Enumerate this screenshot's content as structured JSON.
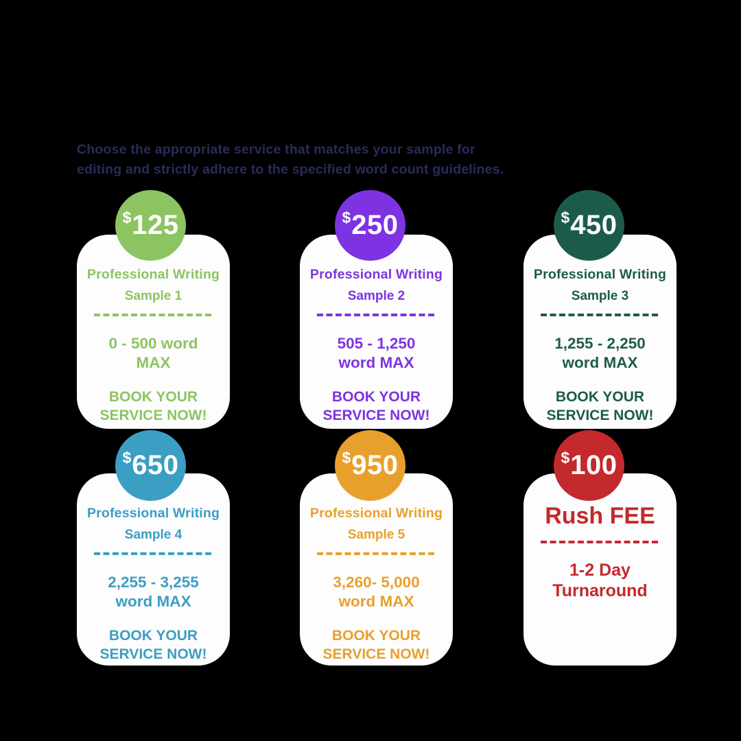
{
  "background_color": "#000000",
  "intro": {
    "line1": "Choose the appropriate service that matches your sample for",
    "line2": "editing and strictly adhere to the specified word count guidelines.",
    "text_color": "#272c5a"
  },
  "cards": [
    {
      "currency": "$",
      "price": "125",
      "title": "Professional Writing",
      "sample": "Sample 1",
      "range_line1": "0 - 500 word",
      "range_line2": "MAX",
      "cta_line1": "BOOK YOUR",
      "cta_line2": "SERVICE NOW!",
      "theme_color": "#8cc462"
    },
    {
      "currency": "$",
      "price": "250",
      "title": "Professional Writing",
      "sample": "Sample 2",
      "range_line1": "505 - 1,250",
      "range_line2": "word MAX",
      "cta_line1": "BOOK YOUR",
      "cta_line2": "SERVICE NOW!",
      "theme_color": "#7e33e2"
    },
    {
      "currency": "$",
      "price": "450",
      "title": "Professional Writing",
      "sample": "Sample 3",
      "range_line1": "1,255 - 2,250",
      "range_line2": "word MAX",
      "cta_line1": "BOOK YOUR",
      "cta_line2": "SERVICE NOW!",
      "theme_color": "#1c5b4c"
    },
    {
      "currency": "$",
      "price": "650",
      "title": "Professional Writing",
      "sample": "Sample 4",
      "range_line1": "2,255 - 3,255",
      "range_line2": "word MAX",
      "cta_line1": "BOOK YOUR",
      "cta_line2": "SERVICE NOW!",
      "theme_color": "#3b9ec3"
    },
    {
      "currency": "$",
      "price": "950",
      "title": "Professional Writing",
      "sample": "Sample 5",
      "range_line1": "3,260- 5,000",
      "range_line2": "word MAX",
      "cta_line1": "BOOK YOUR",
      "cta_line2": "SERVICE NOW!",
      "theme_color": "#e8a02c"
    },
    {
      "currency": "$",
      "price": "100",
      "title": "Rush FEE",
      "range_line1": "1-2 Day",
      "range_line2": "Turnaround",
      "theme_color": "#c4292d"
    }
  ]
}
